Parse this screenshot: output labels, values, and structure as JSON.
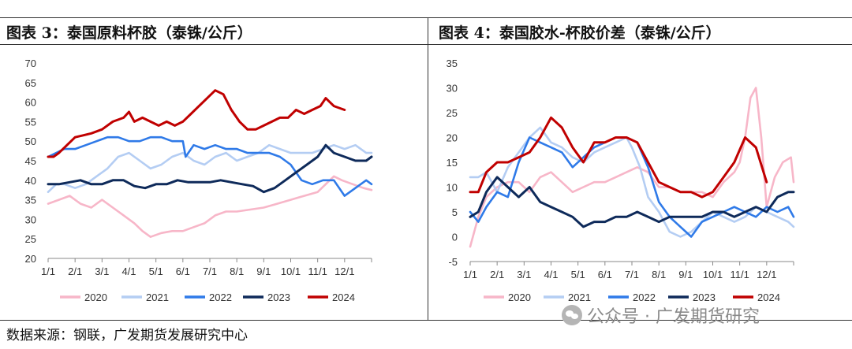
{
  "source_text": "数据来源：钢联，广发期货发展研究中心",
  "watermark_text": "公众号 · 广发期货研究",
  "series_colors": {
    "2020": "#f7b6c8",
    "2021": "#b4cdf3",
    "2022": "#2f7ae8",
    "2023": "#0e2a5a",
    "2024": "#c00000"
  },
  "chart_data": [
    {
      "type": "line",
      "title": "图表 3：泰国原料杯胶（泰铢/公斤）",
      "ylim": [
        20,
        70
      ],
      "yticks": [
        "20",
        "25",
        "30",
        "35",
        "40",
        "45",
        "50",
        "55",
        "60",
        "65",
        "70"
      ],
      "categories": [
        "1/1",
        "2/1",
        "3/1",
        "4/1",
        "5/1",
        "6/1",
        "7/1",
        "8/1",
        "9/1",
        "10/1",
        "11/1",
        "12/1"
      ],
      "x_range": [
        0,
        12
      ],
      "series": [
        {
          "name": "2020",
          "x": [
            0,
            0.4,
            0.8,
            1.2,
            1.6,
            2.0,
            2.4,
            2.8,
            3.2,
            3.5,
            3.8,
            4.2,
            4.6,
            5.0,
            5.4,
            5.8,
            6.2,
            6.6,
            7.0,
            7.5,
            8.0,
            8.5,
            9.0,
            9.5,
            10.0,
            10.3,
            10.6,
            10.9,
            11.3,
            11.7,
            12.0
          ],
          "values": [
            34,
            35,
            36,
            34,
            33,
            35,
            33,
            31,
            29,
            27,
            25.5,
            26.5,
            27,
            27,
            28,
            29,
            31,
            32,
            32,
            32.5,
            33,
            34,
            35,
            36,
            37,
            39,
            41,
            40,
            39,
            38,
            37.5
          ]
        },
        {
          "name": "2021",
          "x": [
            0,
            0.3,
            0.6,
            1.0,
            1.4,
            1.8,
            2.2,
            2.6,
            3.0,
            3.4,
            3.8,
            4.2,
            4.6,
            5.0,
            5.4,
            5.8,
            6.2,
            6.6,
            7.0,
            7.4,
            7.8,
            8.2,
            8.6,
            9.0,
            9.4,
            9.8,
            10.2,
            10.6,
            11.0,
            11.4,
            11.8,
            12.0
          ],
          "values": [
            37,
            39,
            39,
            38,
            39,
            41,
            43,
            46,
            47,
            45,
            43,
            44,
            46,
            47,
            45,
            44,
            46,
            47,
            45,
            46,
            47,
            49,
            48,
            47,
            47,
            47,
            48,
            49,
            48,
            49,
            47,
            47
          ]
        },
        {
          "name": "2022",
          "x": [
            0,
            0.3,
            0.6,
            1.0,
            1.4,
            1.8,
            2.2,
            2.6,
            3.0,
            3.4,
            3.8,
            4.2,
            4.6,
            5.0,
            5.1,
            5.4,
            5.8,
            6.2,
            6.6,
            7.0,
            7.4,
            7.8,
            8.2,
            8.6,
            9.0,
            9.4,
            9.8,
            10.2,
            10.6,
            11.0,
            11.4,
            11.8,
            12.0
          ],
          "values": [
            46,
            47,
            48,
            48,
            49,
            50,
            51,
            51,
            50,
            50,
            51,
            51,
            50,
            50,
            46,
            49,
            48,
            49,
            48,
            48,
            47,
            47,
            47,
            46,
            44,
            40,
            39,
            40,
            40,
            36,
            38,
            40,
            39
          ]
        },
        {
          "name": "2023",
          "x": [
            0,
            0.4,
            0.8,
            1.2,
            1.6,
            2.0,
            2.4,
            2.8,
            3.2,
            3.6,
            4.0,
            4.4,
            4.8,
            5.2,
            5.6,
            6.0,
            6.4,
            6.8,
            7.2,
            7.6,
            8.0,
            8.4,
            8.8,
            9.2,
            9.6,
            10.0,
            10.3,
            10.6,
            11.0,
            11.4,
            11.8,
            12.0
          ],
          "values": [
            39,
            39,
            39.5,
            40,
            39,
            39,
            40,
            40,
            38.5,
            38,
            39,
            39,
            40,
            39.5,
            39.5,
            39.5,
            40,
            39.5,
            39,
            38.5,
            37,
            38,
            40,
            42,
            44,
            46,
            49,
            47,
            46,
            45,
            45,
            46
          ]
        },
        {
          "name": "2024",
          "x": [
            0,
            0.2,
            0.4,
            0.7,
            1.0,
            1.3,
            1.6,
            2.0,
            2.4,
            2.8,
            3.0,
            3.2,
            3.5,
            3.8,
            4.1,
            4.4,
            4.7,
            5.0,
            5.3,
            5.6,
            5.9,
            6.2,
            6.5,
            6.8,
            7.1,
            7.4,
            7.7,
            8.0,
            8.3,
            8.6,
            8.9,
            9.2,
            9.5,
            9.8,
            10.1,
            10.3,
            10.6,
            11.0
          ],
          "values": [
            46,
            46,
            47,
            49,
            51,
            51.5,
            52,
            53,
            55,
            56,
            57.5,
            55,
            56,
            55,
            54,
            55,
            54,
            55,
            57,
            59,
            61,
            63,
            62,
            58,
            55,
            53,
            53,
            54,
            55,
            56,
            56,
            58,
            57,
            58,
            59,
            61,
            59,
            58
          ]
        }
      ]
    },
    {
      "type": "line",
      "title": "图表 4：泰国胶水-杯胶价差（泰铢/公斤）",
      "ylim": [
        -5,
        35
      ],
      "yticks": [
        "-5",
        "0",
        "5",
        "10",
        "15",
        "20",
        "25",
        "30",
        "35"
      ],
      "categories": [
        "1/1",
        "2/1",
        "3/1",
        "4/1",
        "5/1",
        "6/1",
        "7/1",
        "8/1",
        "9/1",
        "10/1",
        "11/1",
        "12/1"
      ],
      "x_range": [
        0,
        12
      ],
      "series": [
        {
          "name": "2020",
          "x": [
            0,
            0.3,
            0.6,
            1.0,
            1.4,
            1.8,
            2.2,
            2.6,
            3.0,
            3.4,
            3.8,
            4.2,
            4.6,
            5.0,
            5.4,
            5.8,
            6.2,
            6.6,
            7.0,
            7.4,
            7.8,
            8.2,
            8.6,
            9.0,
            9.4,
            9.8,
            10.0,
            10.2,
            10.4,
            10.6,
            10.8,
            11.0,
            11.3,
            11.6,
            11.9,
            12.0
          ],
          "values": [
            -2,
            4,
            8,
            10,
            11,
            11,
            9,
            12,
            13,
            11,
            9,
            10,
            11,
            11,
            12,
            13,
            14,
            13,
            10,
            10,
            9,
            9,
            9,
            8,
            11,
            13,
            15,
            20,
            28,
            30,
            20,
            6,
            12,
            15,
            16,
            11
          ]
        },
        {
          "name": "2021",
          "x": [
            0,
            0.3,
            0.6,
            1.0,
            1.4,
            1.8,
            2.2,
            2.6,
            3.0,
            3.4,
            3.8,
            4.2,
            4.6,
            5.0,
            5.4,
            5.8,
            6.0,
            6.3,
            6.6,
            7.0,
            7.4,
            7.8,
            8.2,
            8.6,
            9.0,
            9.4,
            9.8,
            10.2,
            10.6,
            11.0,
            11.4,
            11.8,
            12.0
          ],
          "values": [
            12,
            12,
            13,
            9,
            14,
            17,
            20,
            22,
            19,
            18,
            16,
            15,
            17,
            18,
            19,
            20,
            18,
            14,
            8,
            5,
            1,
            0,
            1,
            3,
            5,
            4,
            3,
            4,
            6,
            5,
            4,
            3,
            2
          ]
        },
        {
          "name": "2022",
          "x": [
            0,
            0.3,
            0.6,
            1.0,
            1.4,
            1.8,
            2.2,
            2.6,
            3.0,
            3.4,
            3.8,
            4.2,
            4.6,
            5.0,
            5.4,
            5.8,
            6.2,
            6.6,
            7.0,
            7.4,
            7.8,
            8.2,
            8.6,
            9.0,
            9.4,
            9.8,
            10.2,
            10.6,
            11.0,
            11.4,
            11.8,
            12.0
          ],
          "values": [
            5,
            3,
            6,
            9,
            8,
            15,
            20,
            19,
            18,
            17,
            14,
            16,
            18,
            19,
            20,
            20,
            19,
            14,
            7,
            4,
            2,
            0,
            3,
            4,
            5,
            6,
            5,
            4,
            6,
            5,
            6,
            4
          ]
        },
        {
          "name": "2023",
          "x": [
            0,
            0.3,
            0.6,
            1.0,
            1.4,
            1.8,
            2.2,
            2.6,
            3.0,
            3.4,
            3.8,
            4.2,
            4.6,
            5.0,
            5.4,
            5.8,
            6.2,
            6.6,
            7.0,
            7.4,
            7.8,
            8.2,
            8.6,
            9.0,
            9.4,
            9.8,
            10.2,
            10.6,
            11.0,
            11.4,
            11.8,
            12.0
          ],
          "values": [
            4,
            5,
            9,
            12,
            10,
            8,
            10,
            7,
            6,
            5,
            4,
            2,
            3,
            3,
            4,
            4,
            5,
            4,
            3,
            4,
            4,
            4,
            4,
            5,
            5,
            4,
            5,
            6,
            5,
            8,
            9,
            9
          ]
        },
        {
          "name": "2024",
          "x": [
            0,
            0.3,
            0.6,
            1.0,
            1.4,
            1.8,
            2.2,
            2.6,
            3.0,
            3.4,
            3.8,
            4.2,
            4.6,
            5.0,
            5.4,
            5.8,
            6.2,
            6.6,
            7.0,
            7.4,
            7.8,
            8.2,
            8.6,
            9.0,
            9.4,
            9.8,
            10.2,
            10.6,
            11.0
          ],
          "values": [
            9,
            9,
            13,
            15,
            15,
            16,
            17,
            20,
            24,
            22,
            18,
            15,
            19,
            19,
            20,
            20,
            19,
            15,
            11,
            10,
            9,
            9,
            8,
            9,
            12,
            15,
            20,
            18,
            11
          ]
        }
      ]
    }
  ]
}
